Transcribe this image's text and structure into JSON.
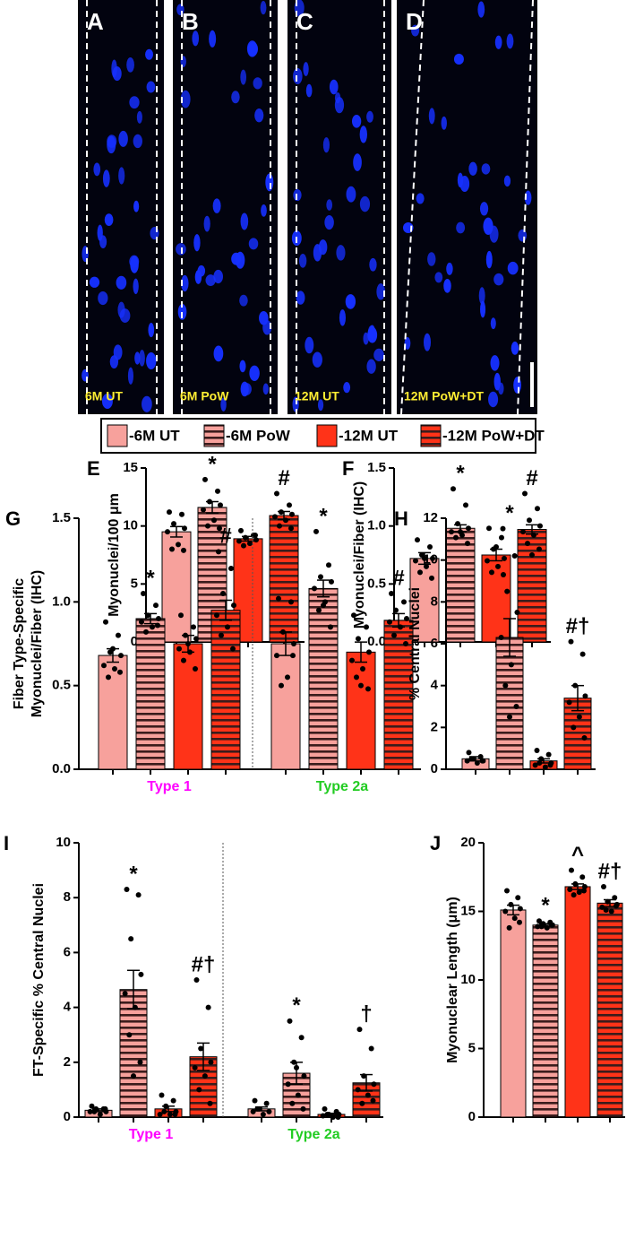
{
  "images": [
    {
      "label": "A",
      "caption": "6M UT"
    },
    {
      "label": "B",
      "caption": "6M PoW"
    },
    {
      "label": "C",
      "caption": "12M UT"
    },
    {
      "label": "D",
      "caption": "12M PoW+DT"
    }
  ],
  "legend": {
    "stripe_color": "#3b1c1c",
    "entries": [
      {
        "name": "-6M UT",
        "color": "#f7a19c",
        "striped": false
      },
      {
        "name": "-6M PoW",
        "color": "#f7a19c",
        "striped": true
      },
      {
        "name": "-12M UT",
        "color": "#ff3318",
        "striped": false
      },
      {
        "name": "-12M PoW+DT",
        "color": "#ff3318",
        "striped": true
      }
    ]
  },
  "chart_data": [
    {
      "type": "bar",
      "panel": "E",
      "ylabel": [
        "Myonuclei/100 μm"
      ],
      "ylim": [
        0,
        15
      ],
      "yticks": [
        0,
        5,
        10,
        15
      ],
      "values": [
        9.5,
        11.6,
        8.9,
        10.9
      ],
      "errors": [
        0.45,
        0.5,
        0.2,
        0.35
      ],
      "points": [
        [
          11.2,
          11.0,
          10.2,
          9.8,
          9.5,
          8.4,
          8.0,
          7.9
        ],
        [
          14.0,
          13.0,
          12.1,
          11.8,
          11.4,
          10.5,
          10.0,
          9.8
        ],
        [
          9.6,
          9.2,
          9.0,
          8.8,
          8.7,
          8.5,
          8.3,
          9.2
        ],
        [
          12.8,
          11.8,
          11.2,
          11.0,
          10.8,
          10.5,
          10.0,
          9.8
        ]
      ],
      "marks": [
        null,
        "*",
        null,
        "#"
      ]
    },
    {
      "type": "bar",
      "panel": "F",
      "ylabel": [
        "Myonuclei/Fiber (IHC)"
      ],
      "ylim": [
        0,
        1.5
      ],
      "yticks": [
        {
          "value": 0,
          "label": "0.0"
        },
        {
          "value": 0.5,
          "label": "0.5"
        },
        {
          "value": 1,
          "label": "1.0"
        },
        {
          "value": 1.5,
          "label": "1.5"
        }
      ],
      "values": [
        0.72,
        0.98,
        0.75,
        0.97
      ],
      "errors": [
        0.05,
        0.03,
        0.05,
        0.04
      ],
      "points": [
        [
          0.88,
          0.82,
          0.75,
          0.72,
          0.7,
          0.65,
          0.6,
          0.55,
          0.72
        ],
        [
          1.32,
          1.18,
          1.02,
          0.98,
          0.95,
          0.92,
          0.9,
          0.85,
          0.95
        ],
        [
          0.98,
          0.9,
          0.8,
          0.72,
          0.7,
          0.65,
          0.6,
          0.58,
          0.82
        ],
        [
          1.28,
          1.15,
          1.05,
          1.0,
          0.95,
          0.92,
          0.85,
          0.8,
          0.75
        ]
      ],
      "marks": [
        null,
        "*",
        null,
        "#"
      ]
    },
    {
      "type": "bar",
      "panel": "G",
      "ylabel": [
        "Fiber Type-Specific",
        "Myonuclei/Fiber (IHC)"
      ],
      "ylim": [
        0,
        1.5
      ],
      "yticks": [
        {
          "value": 0,
          "label": "0.0"
        },
        {
          "value": 0.5,
          "label": "0.5"
        },
        {
          "value": 1,
          "label": "1.0"
        },
        {
          "value": 1.5,
          "label": "1.5"
        }
      ],
      "groups": [
        {
          "name": "Type 1",
          "color": "#ff00ff"
        },
        {
          "name": "Type 2a",
          "color": "#22cc22"
        }
      ],
      "values": [
        0.68,
        0.9,
        0.75,
        0.95,
        0.75,
        1.08,
        0.7,
        0.89
      ],
      "errors": [
        0.04,
        0.03,
        0.05,
        0.06,
        0.07,
        0.05,
        0.06,
        0.04
      ],
      "points": [
        [
          0.88,
          0.8,
          0.7,
          0.68,
          0.62,
          0.6,
          0.55,
          0.58,
          0.72
        ],
        [
          1.05,
          0.98,
          0.92,
          0.9,
          0.88,
          0.85,
          0.82,
          0.86
        ],
        [
          0.92,
          0.85,
          0.8,
          0.78,
          0.72,
          0.7,
          0.65,
          0.6,
          0.75
        ],
        [
          1.3,
          1.2,
          1.05,
          0.98,
          0.92,
          0.85,
          0.8,
          0.72
        ],
        [
          1.02,
          1.0,
          0.82,
          0.75,
          0.68,
          0.55,
          0.5,
          0.68
        ],
        [
          1.42,
          1.22,
          1.15,
          1.12,
          1.08,
          1.0,
          0.95,
          0.85,
          0.98
        ],
        [
          0.92,
          0.85,
          0.78,
          0.7,
          0.65,
          0.6,
          0.55,
          0.48,
          0.5
        ],
        [
          1.05,
          1.0,
          0.95,
          0.9,
          0.88,
          0.85,
          0.8,
          0.75
        ]
      ],
      "marks": [
        null,
        "*",
        null,
        "#",
        null,
        "*",
        null,
        "#"
      ]
    },
    {
      "type": "bar",
      "panel": "H",
      "ylabel": [
        "% Central Nuclei"
      ],
      "ylim": [
        0,
        12
      ],
      "yticks": [
        0,
        2,
        4,
        6,
        8,
        10,
        12
      ],
      "values": [
        0.5,
        6.3,
        0.4,
        3.4
      ],
      "errors": [
        0.1,
        0.9,
        0.1,
        0.6
      ],
      "points": [
        [
          0.8,
          0.6,
          0.5,
          0.4,
          0.4,
          0.3,
          0.5,
          0.4
        ],
        [
          11.5,
          10.2,
          8.5,
          7.5,
          6.3,
          5.0,
          4.0,
          3.0,
          2.5
        ],
        [
          0.9,
          0.7,
          0.5,
          0.3,
          0.2,
          0.1,
          0.3,
          0.2
        ],
        [
          6.1,
          5.5,
          4.0,
          3.5,
          3.2,
          2.5,
          2.0,
          1.5
        ]
      ],
      "marks": [
        null,
        "*",
        null,
        "#†"
      ]
    },
    {
      "type": "bar",
      "panel": "I",
      "ylabel": [
        "FT-Specific % Central Nuclei"
      ],
      "ylim": [
        0,
        10
      ],
      "yticks": [
        0,
        2,
        4,
        6,
        8,
        10
      ],
      "groups": [
        {
          "name": "Type 1",
          "color": "#ff00ff"
        },
        {
          "name": "Type 2a",
          "color": "#22cc22"
        }
      ],
      "values": [
        0.25,
        4.65,
        0.3,
        2.2,
        0.3,
        1.6,
        0.1,
        1.25
      ],
      "errors": [
        0.05,
        0.7,
        0.1,
        0.5,
        0.07,
        0.4,
        0.04,
        0.3
      ],
      "points": [
        [
          0.4,
          0.3,
          0.3,
          0.2,
          0.2,
          0.1,
          0.2,
          0.3
        ],
        [
          8.3,
          8.1,
          6.5,
          5.2,
          4.5,
          4.0,
          3.0,
          2.0,
          1.5
        ],
        [
          0.8,
          0.6,
          0.4,
          0.2,
          0.1,
          0.1,
          0.2,
          0.1
        ],
        [
          5.0,
          4.0,
          2.5,
          2.0,
          1.8,
          1.5,
          1.0,
          0.5
        ],
        [
          0.6,
          0.5,
          0.3,
          0.2,
          0.2,
          0.1,
          0.3
        ],
        [
          3.5,
          2.9,
          2.0,
          1.5,
          1.2,
          0.8,
          0.5,
          0.3,
          1.8
        ],
        [
          0.3,
          0.2,
          0.1,
          0.1,
          0.05,
          0.0,
          0.1,
          0.0
        ],
        [
          3.2,
          2.5,
          1.5,
          1.2,
          1.0,
          0.8,
          0.5,
          0.6
        ]
      ],
      "marks": [
        null,
        "*",
        null,
        "#†",
        null,
        "*",
        null,
        "†"
      ]
    },
    {
      "type": "bar",
      "panel": "J",
      "ylabel": [
        "Myonuclear Length (μm)"
      ],
      "ylim": [
        0,
        20
      ],
      "yticks": [
        0,
        5,
        10,
        15,
        20
      ],
      "values": [
        15.1,
        14.0,
        16.8,
        15.6
      ],
      "errors": [
        0.35,
        0.1,
        0.2,
        0.25
      ],
      "points": [
        [
          16.5,
          16.0,
          15.5,
          15.2,
          15.0,
          14.5,
          13.8,
          14.2
        ],
        [
          14.3,
          14.2,
          14.1,
          14.0,
          13.9,
          13.8,
          13.9,
          14.0
        ],
        [
          18.0,
          17.5,
          17.0,
          16.8,
          16.6,
          16.4,
          16.2,
          16.5
        ],
        [
          16.8,
          16.0,
          15.7,
          15.5,
          15.3,
          15.0,
          15.1,
          15.4
        ]
      ],
      "marks": [
        null,
        "*",
        "^",
        "#†"
      ]
    }
  ]
}
